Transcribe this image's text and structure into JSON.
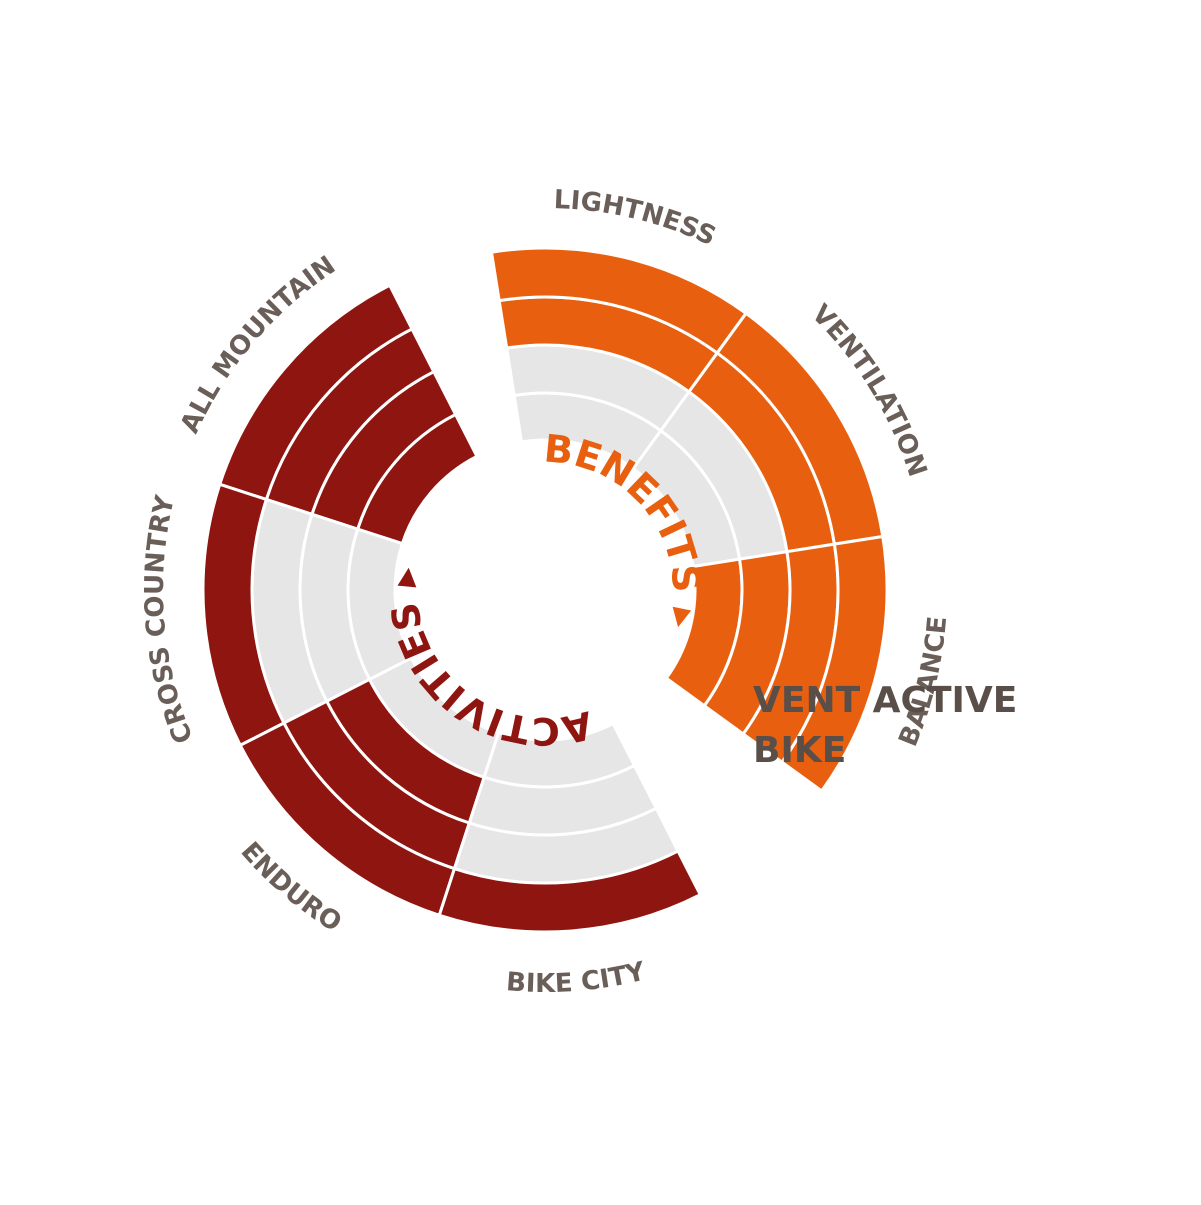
{
  "title_lines": [
    "VENT ACTIVE",
    "BIKE"
  ],
  "colors": {
    "empty": "#e6e6e6",
    "separator": "#ffffff",
    "label": "#6a5e58",
    "title": "#5a4e48"
  },
  "chart_data": [
    {
      "type": "radial-bar",
      "group_label": "BENEFITS",
      "color": "#e8600f",
      "max_level": 4,
      "categories": [
        "LIGHTNESS",
        "VENTILATION",
        "BALANCE"
      ],
      "values": [
        2,
        2,
        4
      ]
    },
    {
      "type": "radial-bar",
      "group_label": "ACTIVITIES",
      "color": "#8e1510",
      "max_level": 4,
      "categories": [
        "ALL MOUNTAIN",
        "CROSS COUNTRY",
        "ENDURO",
        "BIKE CITY"
      ],
      "values": [
        4,
        1,
        3,
        1
      ]
    }
  ]
}
